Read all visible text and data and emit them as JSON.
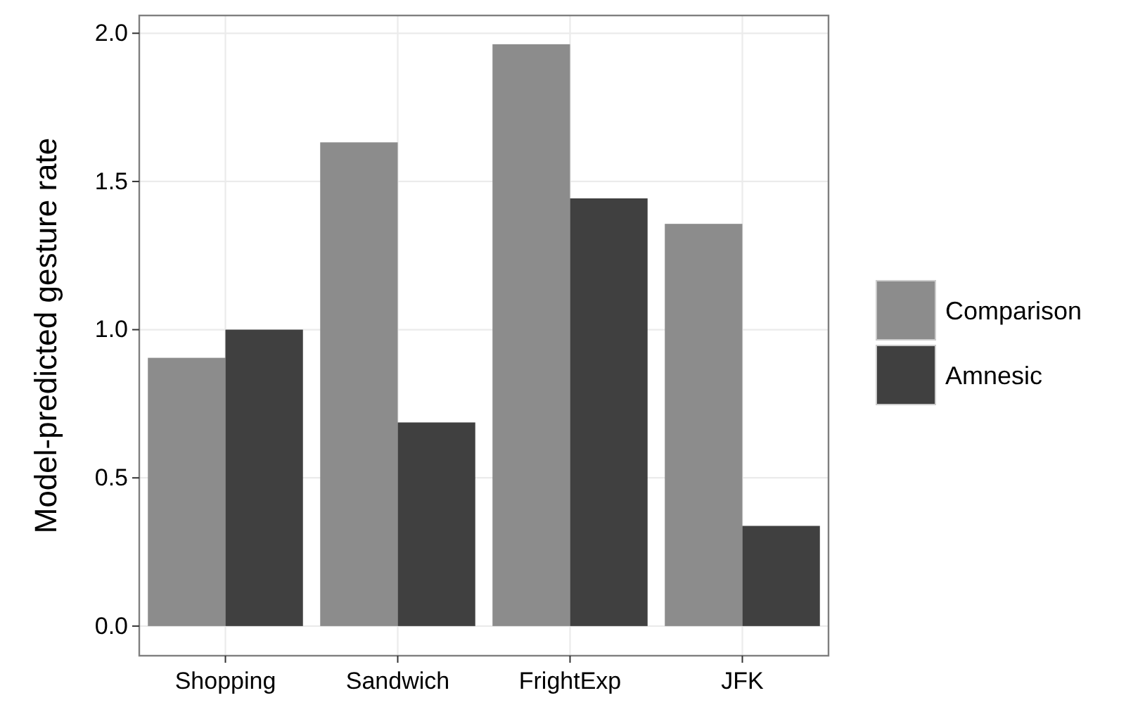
{
  "chart_data": {
    "type": "bar",
    "ylabel": "Model-predicted gesture rate",
    "categories": [
      "Shopping",
      "Sandwich",
      "FrightExp",
      "JFK"
    ],
    "series": [
      {
        "name": "Comparison",
        "color": "#8c8c8c",
        "values": [
          0.905,
          1.632,
          1.963,
          1.357
        ]
      },
      {
        "name": "Amnesic",
        "color": "#404040",
        "values": [
          1.0,
          0.687,
          1.443,
          0.338
        ]
      }
    ],
    "ylim": [
      -0.1,
      2.06
    ],
    "yticks": [
      {
        "value": 0,
        "label": "0.0"
      },
      {
        "value": 0.5,
        "label": "0.5"
      },
      {
        "value": 1,
        "label": "1.0"
      },
      {
        "value": 1.5,
        "label": "1.5"
      },
      {
        "value": 2,
        "label": "2.0"
      }
    ],
    "grid": true,
    "legend": "right"
  }
}
